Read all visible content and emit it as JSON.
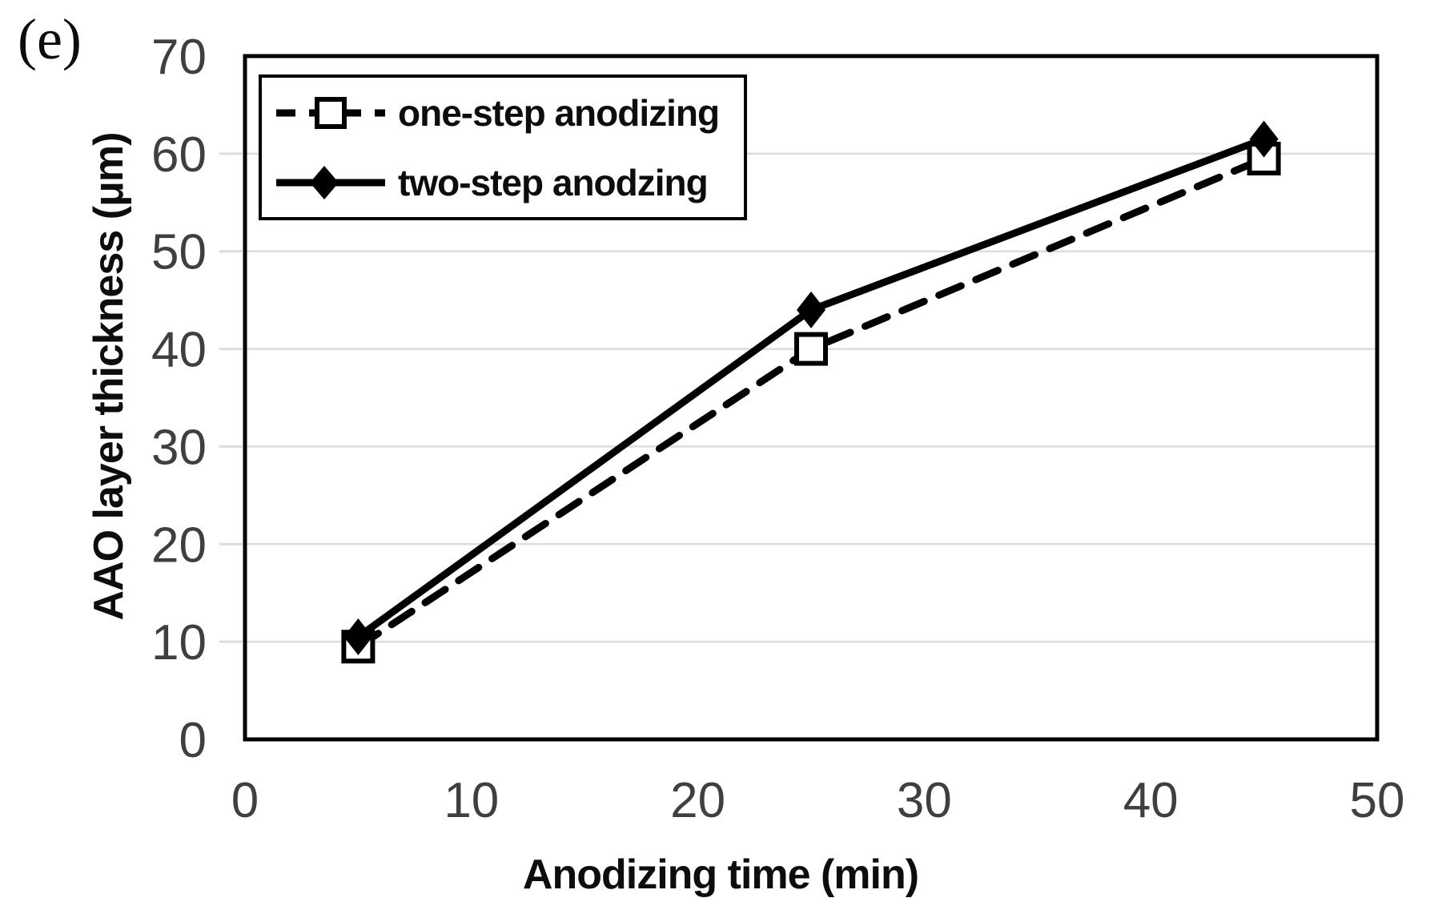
{
  "panel_label": "(e)",
  "chart_data": {
    "type": "line",
    "title": "",
    "xlabel": "Anodizing time (min)",
    "ylabel": "AAO layer thickness (μm)",
    "xlim": [
      0,
      50
    ],
    "ylim": [
      0,
      70
    ],
    "xticks": [
      0,
      10,
      20,
      30,
      40,
      50
    ],
    "yticks": [
      0,
      10,
      20,
      30,
      40,
      50,
      60,
      70
    ],
    "grid": "horizontal-only",
    "gridline_color": "#dcdcdc",
    "tick_label_color": "#3f3f3f",
    "series_color": "#000000",
    "legend_position": "top-left-inside",
    "x": [
      5,
      25,
      45
    ],
    "series": [
      {
        "name": "one-step anodizing",
        "values": [
          9.5,
          40,
          59.5
        ],
        "line_style": "dashed",
        "marker": "open-square"
      },
      {
        "name": "two-step anodzing",
        "values": [
          10.5,
          44,
          61.5
        ],
        "line_style": "solid",
        "marker": "filled-diamond"
      }
    ]
  }
}
